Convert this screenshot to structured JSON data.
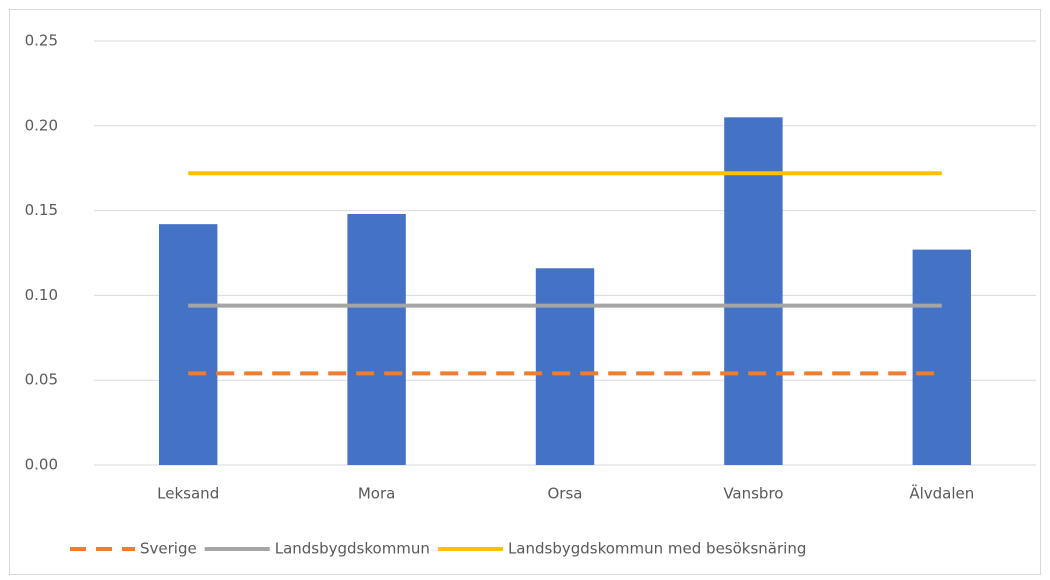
{
  "chart_data": {
    "type": "bar",
    "categories": [
      "Leksand",
      "Mora",
      "Orsa",
      "Vansbro",
      "Älvdalen"
    ],
    "values": [
      0.142,
      0.148,
      0.116,
      0.205,
      0.127
    ],
    "color": "#4472c4",
    "series": [
      {
        "name": "Sverige",
        "color": "#ed7d31",
        "dash": true,
        "values": [
          0.054,
          0.054,
          0.054,
          0.054,
          0.054
        ]
      },
      {
        "name": "Landsbygdskommun",
        "color": "#a5a5a5",
        "dash": false,
        "values": [
          0.094,
          0.094,
          0.094,
          0.094,
          0.094
        ]
      },
      {
        "name": "Landsbygdskommun med besöksnäring",
        "color": "#ffc000",
        "dash": false,
        "values": [
          0.172,
          0.172,
          0.172,
          0.172,
          0.172
        ]
      }
    ],
    "ylim": [
      0,
      0.25
    ],
    "yticks": [
      {
        "value": 0,
        "label": "0.00"
      },
      {
        "value": 0.05,
        "label": "0.05"
      },
      {
        "value": 0.1,
        "label": "0.10"
      },
      {
        "value": 0.15,
        "label": "0.15"
      },
      {
        "value": 0.2,
        "label": "0.20"
      },
      {
        "value": 0.25,
        "label": "0.25"
      }
    ],
    "grid": true,
    "legend": "bottom"
  }
}
